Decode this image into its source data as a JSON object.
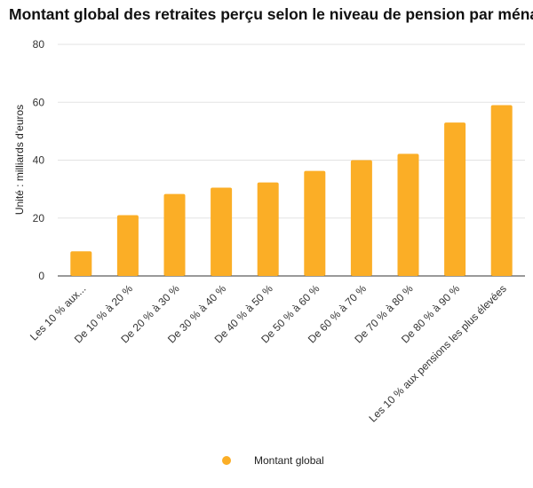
{
  "chart_data": {
    "type": "bar",
    "title": "Montant global des retraites perçu selon le niveau de pension par ménage",
    "xlabel": "",
    "ylabel": "Unité : milliards d'euros",
    "ylim": [
      0,
      80
    ],
    "yticks": [
      0,
      20,
      40,
      60,
      80
    ],
    "grid": true,
    "legend_position": "bottom",
    "color": "#FBAE26",
    "categories": [
      "Les 10 % aux...",
      "De 10 % à 20 %",
      "De 20 % à 30 %",
      "De 30 % à 40 %",
      "De 40 % à 50 %",
      "De 50 % à 60 %",
      "De 60 % à 70 %",
      "De 70 % à 80 %",
      "De 80 % à 90 %",
      "Les 10 % aux pensions les plus élevées"
    ],
    "series": [
      {
        "name": "Montant global",
        "values": [
          8.5,
          21,
          28.3,
          30.5,
          32.3,
          36.3,
          40,
          42.2,
          53,
          59
        ]
      }
    ]
  }
}
